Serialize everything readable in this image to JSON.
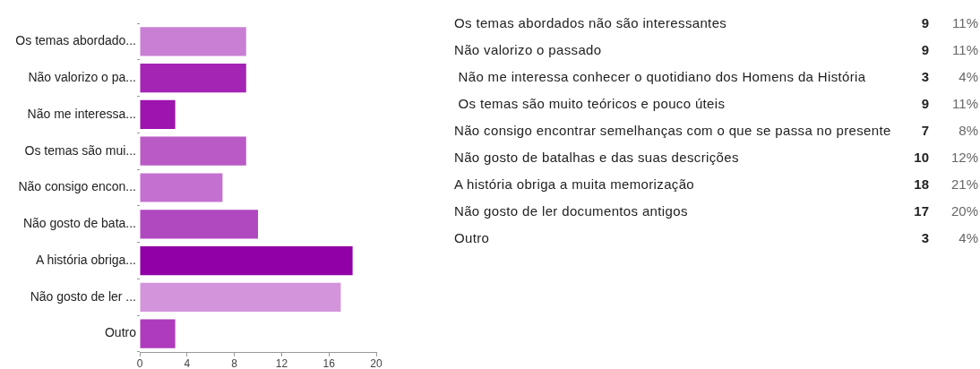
{
  "chart_data": [
    {
      "type": "bar",
      "orientation": "horizontal",
      "categories": [
        "Os temas abordado...",
        "Não valorizo o pa...",
        "Não me interessa...",
        "Os temas são mui...",
        "Não consigo encon...",
        "Não gosto de bata...",
        "A história obriga...",
        "Não gosto de ler ...",
        "Outro"
      ],
      "values": [
        9,
        9,
        3,
        9,
        7,
        10,
        18,
        17,
        3
      ],
      "colors": [
        "#c980d4",
        "#a424b4",
        "#9d14ae",
        "#ba5ac6",
        "#c470d0",
        "#b049c0",
        "#9000a6",
        "#d494dc",
        "#ae3bbd"
      ],
      "xlim": [
        0,
        20
      ],
      "xticks": [
        0,
        4,
        8,
        12,
        16,
        20
      ]
    },
    {
      "type": "other",
      "categories": [
        "Os temas abordados não são interessantes",
        "Não valorizo o passado",
        " Não me interessa conhecer o quotidiano dos Homens da História",
        " Os temas são muito teóricos e pouco úteis",
        "Não consigo encontrar semelhanças com o que se passa no presente",
        "Não gosto de batalhas e das suas descrições",
        "A história obriga a muita memorização",
        "Não gosto de ler documentos antigos",
        "Outro"
      ],
      "series": [
        {
          "values": [
            9,
            9,
            3,
            9,
            7,
            10,
            18,
            17,
            3
          ]
        },
        {
          "values": [
            11,
            11,
            4,
            11,
            8,
            12,
            21,
            20,
            4
          ],
          "value_labels": [
            "11%",
            "11%",
            "4%",
            "11%",
            "8%",
            "12%",
            "21%",
            "20%",
            "4%"
          ]
        }
      ],
      "data_labels": true
    }
  ]
}
